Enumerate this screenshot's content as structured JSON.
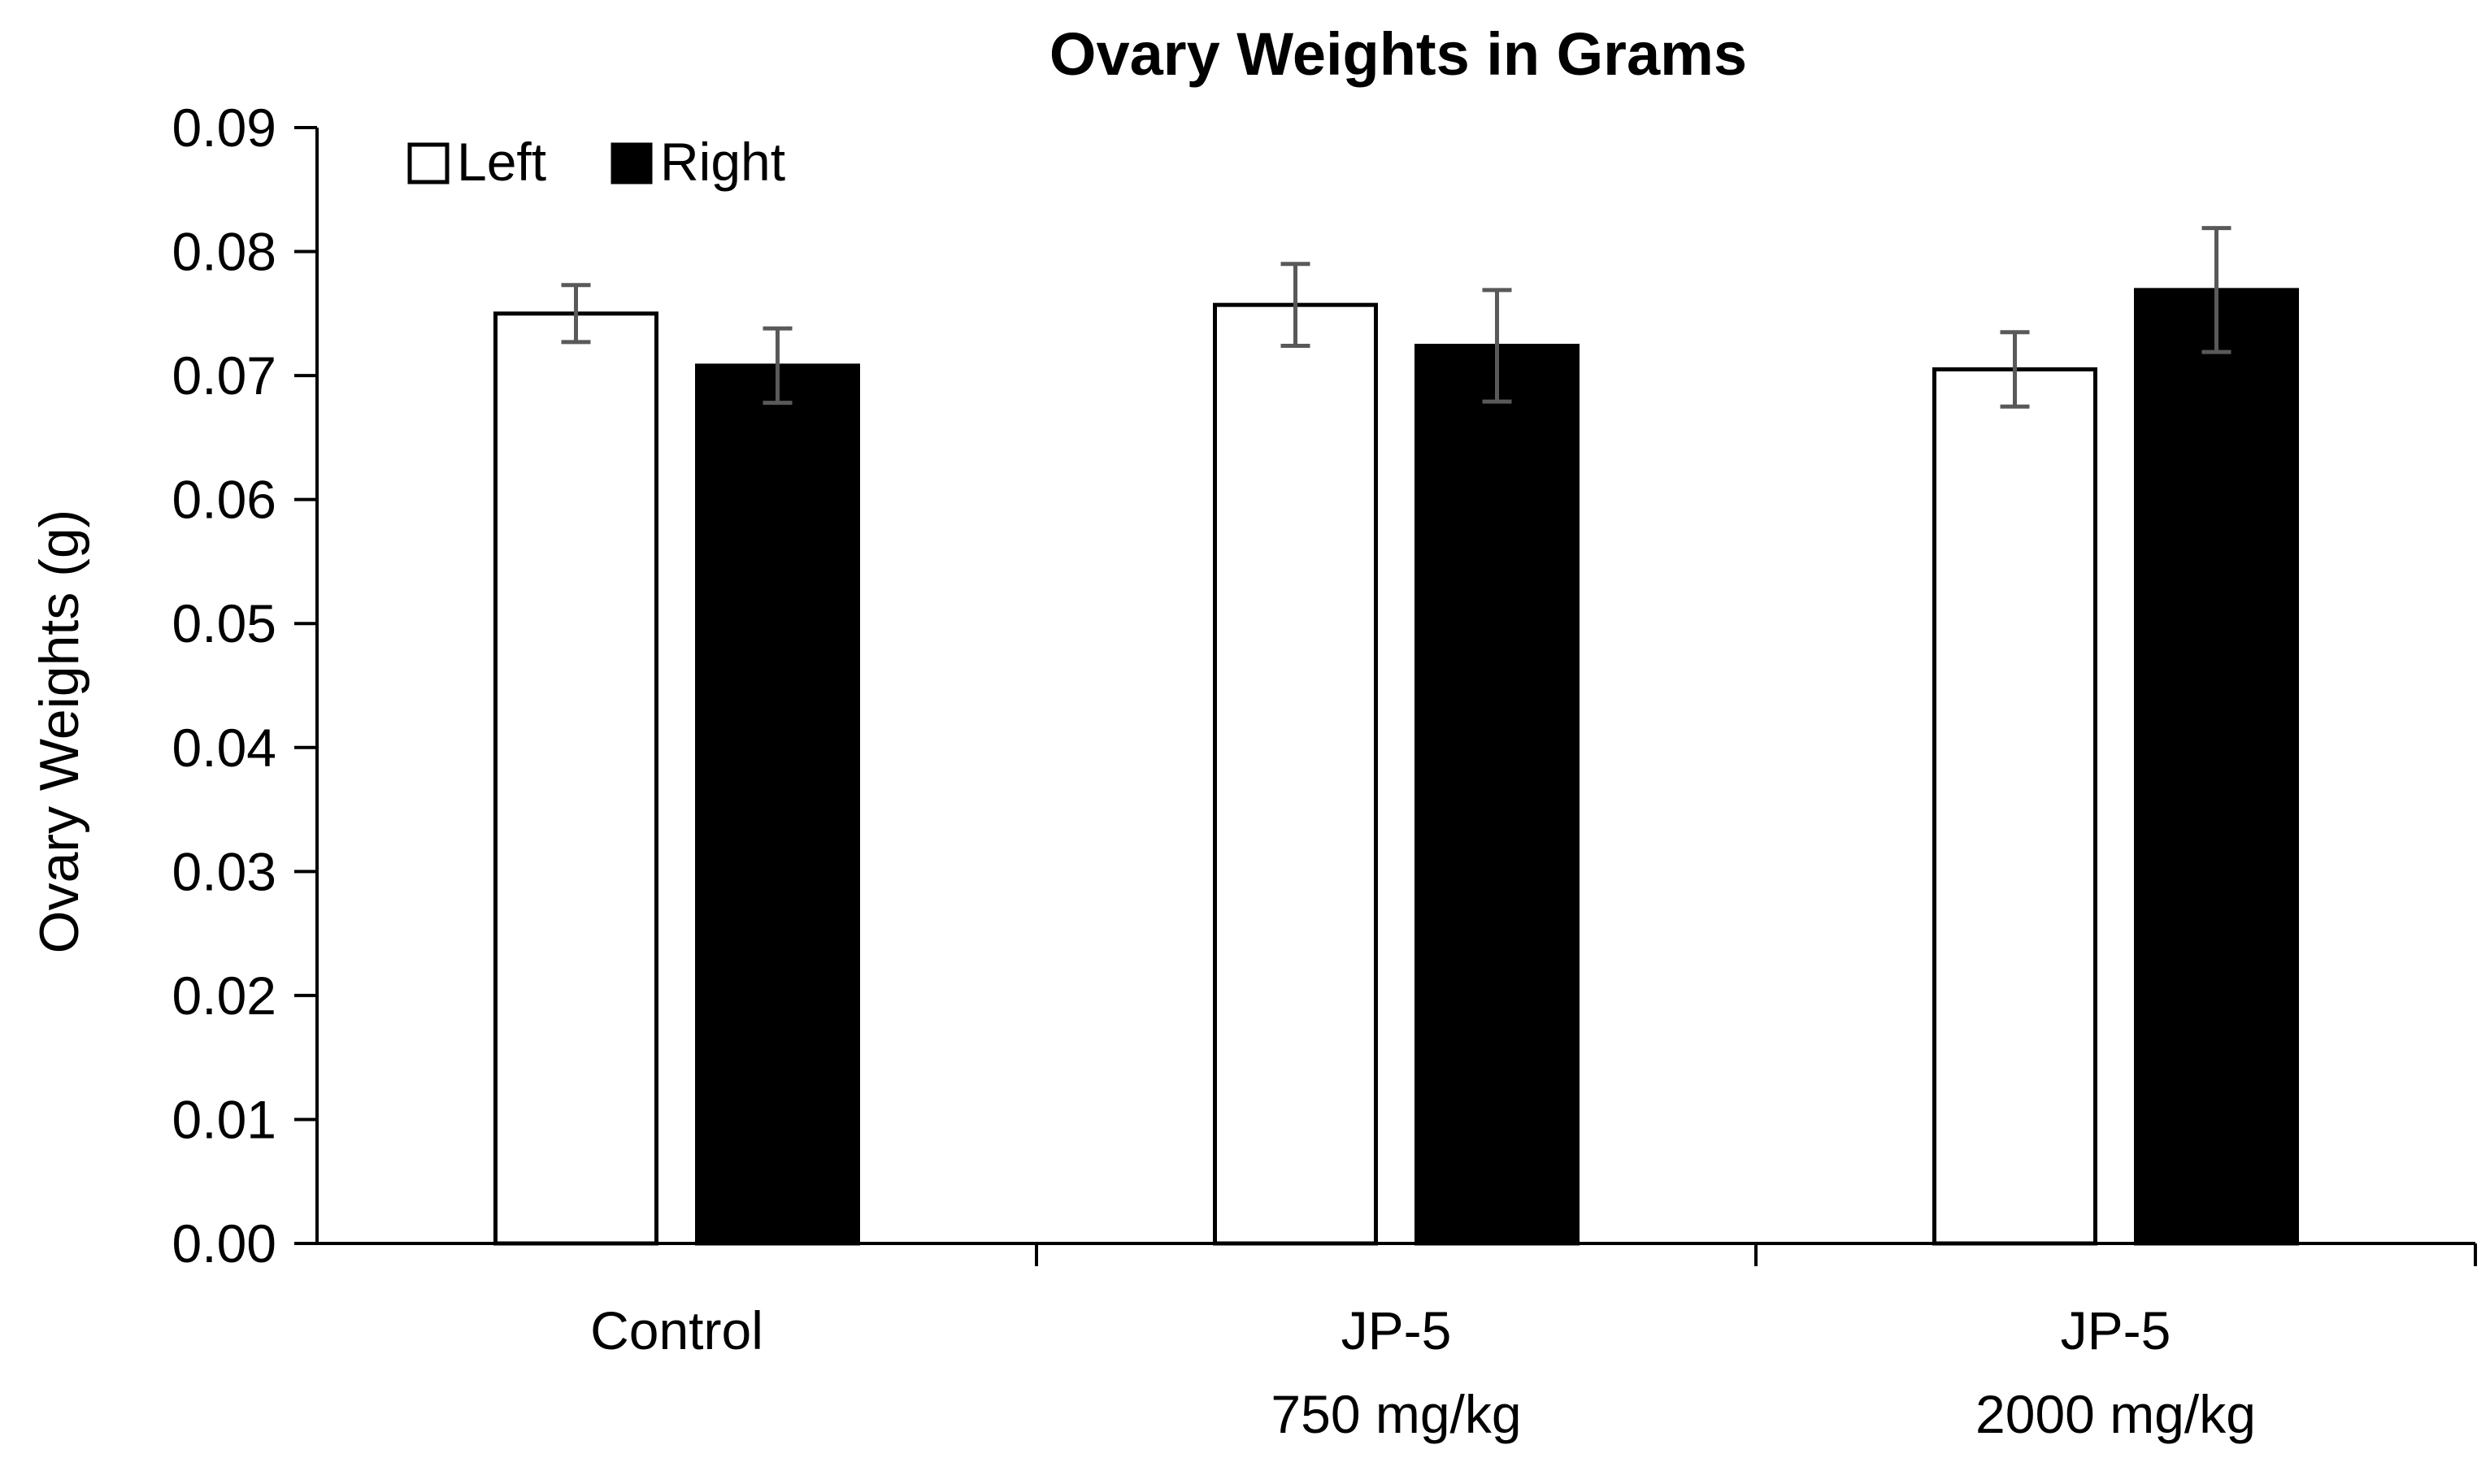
{
  "chart_data": {
    "type": "bar",
    "title": "Ovary Weights in Grams",
    "xlabel": "",
    "ylabel": "Ovary Weights (g)",
    "ylim": [
      0,
      0.09
    ],
    "ytick_values": [
      0,
      0.01,
      0.02,
      0.03,
      0.04,
      0.05,
      0.06,
      0.07,
      0.08,
      0.09
    ],
    "ytick_labels": [
      "0.00",
      "0.01",
      "0.02",
      "0.03",
      "0.04",
      "0.05",
      "0.06",
      "0.07",
      "0.08",
      "0.09"
    ],
    "categories": [
      [
        "Control"
      ],
      [
        "JP-5",
        "750 mg/kg"
      ],
      [
        "JP-5",
        "2000 mg/kg"
      ]
    ],
    "series": [
      {
        "name": "Left",
        "fill": "#ffffff",
        "values": [
          0.075,
          0.0757,
          0.0705
        ],
        "errors": [
          0.0023,
          0.0033,
          0.003
        ]
      },
      {
        "name": "Right",
        "fill": "#000000",
        "values": [
          0.0708,
          0.0724,
          0.0769
        ],
        "errors": [
          0.003,
          0.0045,
          0.005
        ]
      }
    ],
    "legend_position": "top-left",
    "grid": false,
    "colors": {
      "axis": "#000000",
      "errorbar": "#595959",
      "bar_edge": "#000000"
    }
  }
}
